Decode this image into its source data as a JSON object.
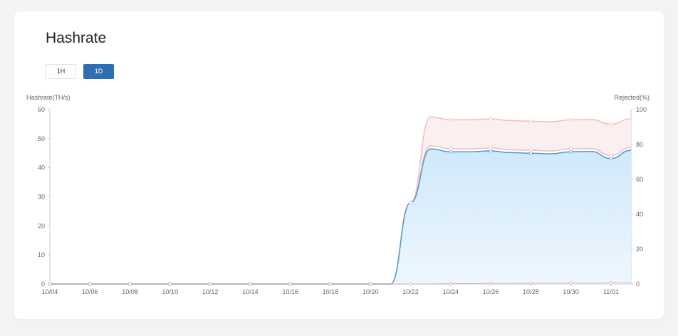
{
  "title": "Hashrate",
  "range_buttons": [
    {
      "label": "1H",
      "active": false
    },
    {
      "label": "1D",
      "active": true
    }
  ],
  "colors": {
    "hashrate_line": "#4a9ad4",
    "hashrate_fill_top": "#cfe8fb",
    "hashrate_fill_bottom": "#eef7fe",
    "rejected_line": "#f2bcbc",
    "rejected_fill": "#fbf0ef",
    "active_button": "#2f6db5"
  },
  "chart_data": {
    "type": "area",
    "y_left_label": "Hashrate(TH/s)",
    "y_right_label": "Rejected(%)",
    "y_left_ticks": [
      0,
      10,
      20,
      30,
      40,
      50,
      60
    ],
    "y_right_ticks": [
      0,
      20,
      40,
      60,
      80,
      100
    ],
    "y_left_range": [
      0,
      60
    ],
    "y_right_range": [
      0,
      100
    ],
    "x_tick_labels": [
      "10/04",
      "10/06",
      "10/08",
      "10/10",
      "10/12",
      "10/14",
      "10/16",
      "10/18",
      "10/20",
      "10/22",
      "10/24",
      "10/26",
      "10/28",
      "10/30",
      "11/01"
    ],
    "x": [
      "10/04",
      "10/05",
      "10/06",
      "10/07",
      "10/08",
      "10/09",
      "10/10",
      "10/11",
      "10/12",
      "10/13",
      "10/14",
      "10/15",
      "10/16",
      "10/17",
      "10/18",
      "10/19",
      "10/20",
      "10/21",
      "10/22",
      "10/23",
      "10/24",
      "10/25",
      "10/26",
      "10/27",
      "10/28",
      "10/29",
      "10/30",
      "10/31",
      "11/01",
      "11/02"
    ],
    "series": [
      {
        "values": [
          0,
          0,
          0,
          0,
          0,
          0,
          0,
          0,
          0,
          0,
          0,
          0,
          0,
          0,
          0,
          0,
          0,
          0,
          28,
          46.5,
          45.5,
          45.5,
          45.8,
          45.2,
          45,
          44.8,
          45.5,
          45.6,
          43.2,
          46
        ]
      },
      {
        "values": [
          0,
          0,
          0,
          0,
          0,
          0,
          0,
          0,
          0,
          0,
          0,
          0,
          0,
          0,
          0,
          0,
          0,
          0,
          0,
          0,
          0.2,
          0.2,
          0.3,
          0.3,
          0.4,
          0.4,
          0.5,
          0.5,
          0.6,
          0.6
        ]
      }
    ],
    "band_upper": [
      0,
      0,
      0,
      0,
      0,
      0,
      0,
      0,
      0,
      0,
      0,
      0,
      0,
      0,
      0,
      0,
      0,
      0,
      28,
      57.5,
      56.5,
      56.5,
      56.8,
      56.2,
      56,
      55.8,
      56.5,
      56.6,
      55,
      56.8
    ],
    "band_mid": [
      0,
      0,
      0,
      0,
      0,
      0,
      0,
      0,
      0,
      0,
      0,
      0,
      0,
      0,
      0,
      0,
      0,
      0,
      28,
      47.5,
      46.5,
      46.5,
      46.8,
      46.2,
      46,
      45.8,
      46.5,
      46.6,
      44.2,
      47
    ],
    "grid": false
  }
}
